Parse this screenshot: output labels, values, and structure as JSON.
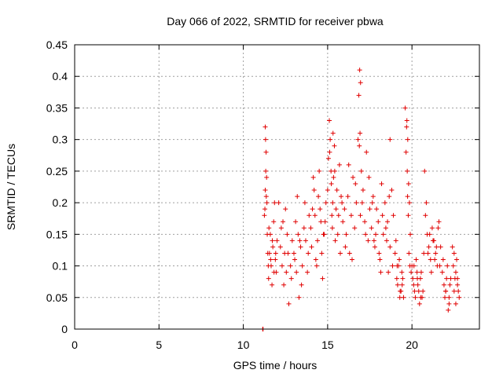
{
  "chart_data": {
    "type": "scatter",
    "title": "Day 066 of 2022, SRMTID for receiver pbwa",
    "xlabel": "GPS time / hours",
    "ylabel": "SRMTID / TECUs",
    "xlim": [
      0,
      24
    ],
    "ylim": [
      0,
      0.45
    ],
    "x_ticks": [
      0,
      5,
      10,
      15,
      20
    ],
    "x_tick_labels": [
      "0",
      "5",
      "10",
      "15",
      "20"
    ],
    "y_ticks": [
      0,
      0.05,
      0.1,
      0.15,
      0.2,
      0.25,
      0.3,
      0.35,
      0.4,
      0.45
    ],
    "y_tick_labels": [
      "0",
      "0.05",
      "0.1",
      "0.15",
      "0.2",
      "0.25",
      "0.3",
      "0.35",
      "0.4",
      "0.45"
    ],
    "grid": true,
    "legend": "none",
    "marker": "plus",
    "marker_color": "#e00000",
    "series": [
      {
        "x": [
          11.15,
          11.17,
          11.25,
          11.3,
          11.32,
          11.35,
          11.38,
          11.4,
          11.42,
          11.45,
          11.48,
          11.3,
          11.33,
          11.36,
          11.28,
          11.5,
          11.55,
          11.6,
          11.65,
          11.7,
          11.75,
          11.8,
          11.85,
          11.9,
          11.95,
          12.0,
          11.52,
          11.62,
          11.72,
          11.82,
          11.92,
          12.1,
          12.2,
          12.3,
          12.35,
          12.4,
          12.45,
          12.5,
          12.6,
          12.7,
          12.8,
          12.9,
          12.25,
          12.55,
          12.65,
          12.85,
          13.0,
          13.1,
          13.2,
          13.3,
          13.4,
          13.5,
          13.6,
          13.7,
          13.8,
          13.9,
          13.05,
          13.25,
          13.45,
          13.65,
          13.85,
          13.15,
          13.35,
          14.0,
          14.1,
          14.2,
          14.3,
          14.4,
          14.5,
          14.6,
          14.7,
          14.8,
          14.9,
          14.05,
          14.25,
          14.45,
          14.65,
          14.85,
          14.15,
          14.35,
          14.55,
          14.75,
          15.0,
          15.05,
          15.1,
          15.15,
          15.2,
          15.25,
          15.3,
          15.35,
          15.4,
          15.5,
          15.6,
          15.7,
          15.8,
          15.9,
          15.12,
          15.22,
          15.32,
          15.45,
          15.55,
          15.65,
          15.75,
          15.85,
          15.28,
          15.42,
          16.0,
          16.1,
          16.2,
          16.3,
          16.4,
          16.5,
          16.6,
          16.7,
          16.8,
          16.85,
          16.9,
          16.95,
          17.0,
          17.1,
          17.2,
          17.3,
          17.4,
          17.5,
          16.05,
          16.25,
          16.45,
          16.65,
          16.92,
          16.88,
          16.94,
          17.05,
          17.25,
          17.45,
          17.6,
          17.7,
          17.8,
          17.9,
          18.0,
          18.1,
          18.2,
          18.3,
          18.4,
          18.5,
          18.6,
          18.7,
          18.8,
          18.9,
          17.65,
          17.85,
          18.05,
          18.25,
          18.45,
          18.65,
          18.85,
          17.75,
          18.15,
          18.55,
          18.7,
          19.0,
          19.1,
          19.2,
          19.3,
          19.4,
          19.5,
          19.05,
          19.15,
          19.25,
          19.35,
          19.45,
          19.12,
          19.28,
          19.42,
          19.6,
          19.7,
          19.75,
          19.8,
          19.85,
          19.9,
          19.65,
          19.72,
          19.78,
          19.68,
          19.74,
          19.82,
          19.88,
          19.95,
          20.0,
          20.1,
          20.2,
          20.3,
          20.4,
          20.5,
          20.6,
          20.7,
          20.05,
          20.15,
          20.25,
          20.35,
          20.45,
          20.55,
          20.65,
          20.12,
          20.32,
          20.52,
          20.75,
          20.8,
          20.9,
          21.0,
          21.1,
          21.2,
          21.3,
          21.4,
          21.5,
          21.6,
          21.7,
          20.85,
          20.95,
          21.05,
          21.15,
          21.25,
          21.35,
          21.45,
          21.55,
          21.65,
          21.8,
          21.9,
          22.0,
          22.1,
          22.2,
          22.3,
          21.85,
          21.95,
          22.05,
          22.15,
          22.25,
          22.0,
          22.2,
          22.4,
          22.5,
          22.6,
          22.7,
          22.8,
          22.45,
          22.55,
          22.65,
          22.75,
          22.5,
          22.6,
          22.7
        ],
        "y": [
          0.0,
          0.0,
          0.18,
          0.32,
          0.3,
          0.28,
          0.24,
          0.2,
          0.15,
          0.12,
          0.1,
          0.22,
          0.25,
          0.21,
          0.19,
          0.08,
          0.12,
          0.15,
          0.1,
          0.07,
          0.13,
          0.17,
          0.2,
          0.11,
          0.09,
          0.14,
          0.16,
          0.11,
          0.14,
          0.09,
          0.12,
          0.2,
          0.13,
          0.1,
          0.17,
          0.07,
          0.12,
          0.19,
          0.15,
          0.04,
          0.1,
          0.14,
          0.16,
          0.09,
          0.12,
          0.08,
          0.12,
          0.17,
          0.21,
          0.05,
          0.13,
          0.1,
          0.16,
          0.14,
          0.09,
          0.18,
          0.11,
          0.15,
          0.07,
          0.2,
          0.12,
          0.09,
          0.14,
          0.16,
          0.19,
          0.22,
          0.11,
          0.14,
          0.25,
          0.17,
          0.08,
          0.15,
          0.2,
          0.13,
          0.18,
          0.21,
          0.12,
          0.17,
          0.24,
          0.1,
          0.19,
          0.15,
          0.22,
          0.27,
          0.33,
          0.3,
          0.25,
          0.18,
          0.2,
          0.24,
          0.29,
          0.19,
          0.15,
          0.26,
          0.21,
          0.17,
          0.28,
          0.23,
          0.31,
          0.14,
          0.22,
          0.18,
          0.12,
          0.2,
          0.16,
          0.25,
          0.19,
          0.15,
          0.21,
          0.12,
          0.18,
          0.24,
          0.16,
          0.2,
          0.3,
          0.37,
          0.41,
          0.39,
          0.25,
          0.22,
          0.17,
          0.28,
          0.14,
          0.19,
          0.13,
          0.26,
          0.11,
          0.23,
          0.31,
          0.29,
          0.18,
          0.2,
          0.15,
          0.24,
          0.16,
          0.21,
          0.13,
          0.19,
          0.17,
          0.11,
          0.23,
          0.15,
          0.2,
          0.14,
          0.09,
          0.3,
          0.22,
          0.18,
          0.2,
          0.15,
          0.12,
          0.18,
          0.16,
          0.21,
          0.1,
          0.14,
          0.09,
          0.17,
          0.13,
          0.12,
          0.08,
          0.1,
          0.06,
          0.09,
          0.05,
          0.14,
          0.07,
          0.11,
          0.06,
          0.08,
          0.1,
          0.05,
          0.07,
          0.35,
          0.33,
          0.3,
          0.23,
          0.2,
          0.15,
          0.28,
          0.25,
          0.18,
          0.32,
          0.21,
          0.12,
          0.1,
          0.09,
          0.1,
          0.07,
          0.05,
          0.09,
          0.06,
          0.08,
          0.05,
          0.12,
          0.08,
          0.06,
          0.11,
          0.07,
          0.04,
          0.09,
          0.06,
          0.1,
          0.08,
          0.05,
          0.25,
          0.18,
          0.15,
          0.13,
          0.11,
          0.16,
          0.14,
          0.12,
          0.1,
          0.17,
          0.13,
          0.2,
          0.12,
          0.15,
          0.09,
          0.14,
          0.11,
          0.13,
          0.16,
          0.1,
          0.09,
          0.07,
          0.06,
          0.1,
          0.04,
          0.08,
          0.11,
          0.05,
          0.08,
          0.03,
          0.07,
          0.06,
          0.05,
          0.13,
          0.12,
          0.09,
          0.07,
          0.05,
          0.1,
          0.08,
          0.11,
          0.06,
          0.06,
          0.04,
          0.08
        ]
      }
    ]
  }
}
